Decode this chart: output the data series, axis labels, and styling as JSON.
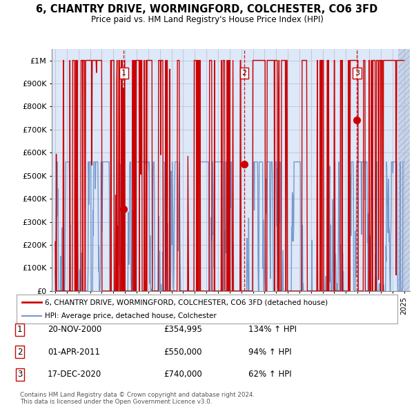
{
  "title1": "6, CHANTRY DRIVE, WORMINGFORD, COLCHESTER, CO6 3FD",
  "title2": "Price paid vs. HM Land Registry's House Price Index (HPI)",
  "ylabel_ticks": [
    "£0",
    "£100K",
    "£200K",
    "£300K",
    "£400K",
    "£500K",
    "£600K",
    "£700K",
    "£800K",
    "£900K",
    "£1M"
  ],
  "ytick_values": [
    0,
    100000,
    200000,
    300000,
    400000,
    500000,
    600000,
    700000,
    800000,
    900000,
    1000000
  ],
  "ylim": [
    0,
    1050000
  ],
  "xlim_start": 1994.7,
  "xlim_end": 2025.5,
  "sale_dates": [
    2000.89,
    2011.25,
    2020.96
  ],
  "sale_prices": [
    354995,
    550000,
    740000
  ],
  "sale_labels": [
    "1",
    "2",
    "3"
  ],
  "sale_date_strs": [
    "20-NOV-2000",
    "01-APR-2011",
    "17-DEC-2020"
  ],
  "sale_price_strs": [
    "£354,995",
    "£550,000",
    "£740,000"
  ],
  "sale_hpi_strs": [
    "134% ↑ HPI",
    "94% ↑ HPI",
    "62% ↑ HPI"
  ],
  "legend_line1": "6, CHANTRY DRIVE, WORMINGFORD, COLCHESTER, CO6 3FD (detached house)",
  "legend_line2": "HPI: Average price, detached house, Colchester",
  "footer1": "Contains HM Land Registry data © Crown copyright and database right 2024.",
  "footer2": "This data is licensed under the Open Government Licence v3.0.",
  "bg_color": "#dde8f8",
  "grid_color": "#bbbbcc",
  "red_line_color": "#cc0000",
  "blue_line_color": "#7799cc",
  "sale_marker_color": "#cc0000",
  "dashed_line_color": "#cc0000",
  "hatch_color": "#c8d4e8"
}
